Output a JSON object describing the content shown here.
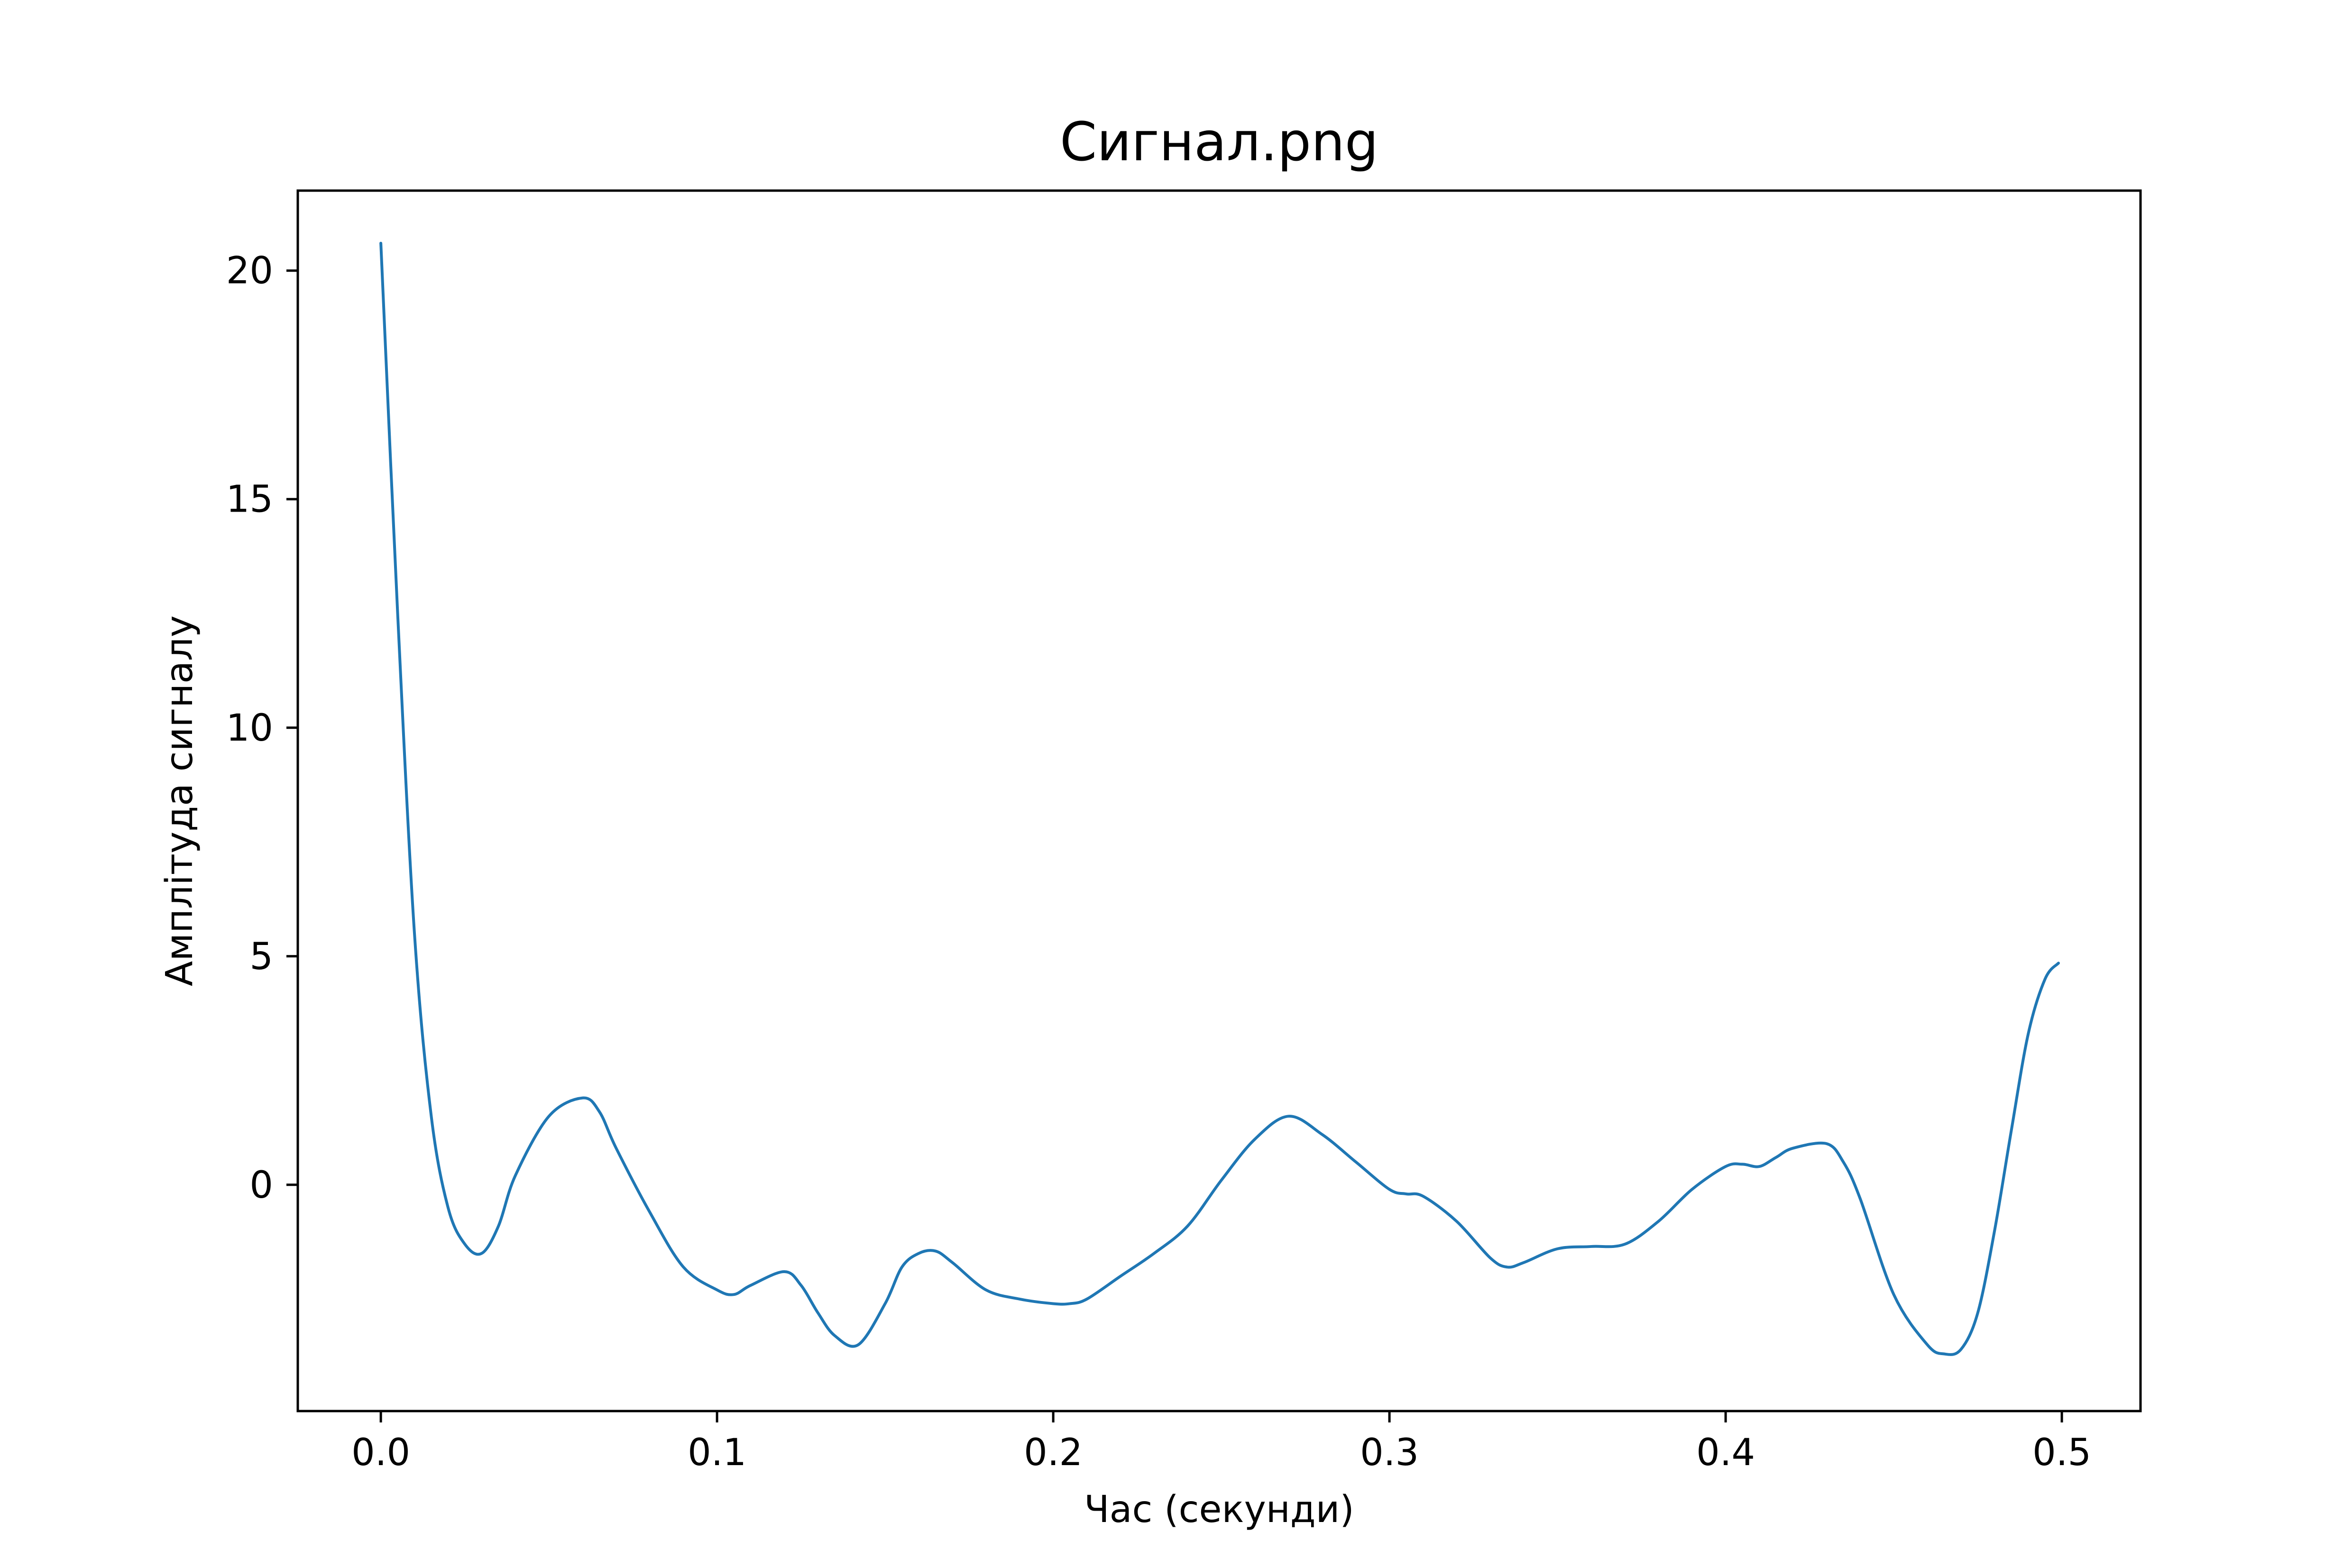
{
  "chart_data": {
    "type": "line",
    "title": "Сигнал.png",
    "xlabel": "Час (секунди)",
    "ylabel": "Амплітуда сигналу",
    "xlim": [
      -0.0247,
      0.5234
    ],
    "ylim": [
      -4.95,
      21.75
    ],
    "xticks": [
      {
        "value": 0.0,
        "label": "0.0"
      },
      {
        "value": 0.1,
        "label": "0.1"
      },
      {
        "value": 0.2,
        "label": "0.2"
      },
      {
        "value": 0.3,
        "label": "0.3"
      },
      {
        "value": 0.4,
        "label": "0.4"
      },
      {
        "value": 0.5,
        "label": "0.5"
      }
    ],
    "yticks": [
      {
        "value": 0,
        "label": "0"
      },
      {
        "value": 5,
        "label": "5"
      },
      {
        "value": 10,
        "label": "10"
      },
      {
        "value": 15,
        "label": "15"
      },
      {
        "value": 20,
        "label": "20"
      }
    ],
    "grid": false,
    "legend": false,
    "colors": {
      "line": "#1f77b4",
      "axes": "#000000",
      "background": "#ffffff"
    },
    "series": [
      {
        "x": [
          0.0,
          0.005,
          0.01,
          0.015,
          0.02,
          0.025,
          0.03,
          0.035,
          0.04,
          0.05,
          0.06,
          0.065,
          0.07,
          0.08,
          0.09,
          0.1,
          0.105,
          0.11,
          0.12,
          0.125,
          0.13,
          0.135,
          0.142,
          0.15,
          0.155,
          0.16,
          0.165,
          0.17,
          0.18,
          0.19,
          0.2,
          0.205,
          0.21,
          0.22,
          0.23,
          0.24,
          0.25,
          0.26,
          0.27,
          0.28,
          0.29,
          0.3,
          0.305,
          0.31,
          0.32,
          0.33,
          0.335,
          0.34,
          0.35,
          0.36,
          0.37,
          0.38,
          0.39,
          0.4,
          0.405,
          0.41,
          0.415,
          0.42,
          0.43,
          0.435,
          0.44,
          0.45,
          0.46,
          0.465,
          0.47,
          0.475,
          0.48,
          0.485,
          0.49,
          0.495,
          0.499
        ],
        "y": [
          20.6,
          12.5,
          5.5,
          1.5,
          -0.5,
          -1.3,
          -1.5,
          -0.9,
          0.2,
          1.5,
          1.9,
          1.6,
          0.8,
          -0.6,
          -1.8,
          -2.3,
          -2.4,
          -2.2,
          -1.9,
          -2.2,
          -2.8,
          -3.3,
          -3.5,
          -2.6,
          -1.8,
          -1.5,
          -1.45,
          -1.7,
          -2.3,
          -2.5,
          -2.6,
          -2.6,
          -2.5,
          -2.0,
          -1.5,
          -0.9,
          0.1,
          1.0,
          1.5,
          1.1,
          0.5,
          -0.1,
          -0.2,
          -0.25,
          -0.8,
          -1.6,
          -1.8,
          -1.7,
          -1.4,
          -1.35,
          -1.3,
          -0.8,
          -0.1,
          0.4,
          0.45,
          0.4,
          0.6,
          0.8,
          0.9,
          0.5,
          -0.3,
          -2.4,
          -3.5,
          -3.7,
          -3.6,
          -2.8,
          -1.0,
          1.2,
          3.3,
          4.5,
          4.85
        ]
      }
    ]
  }
}
